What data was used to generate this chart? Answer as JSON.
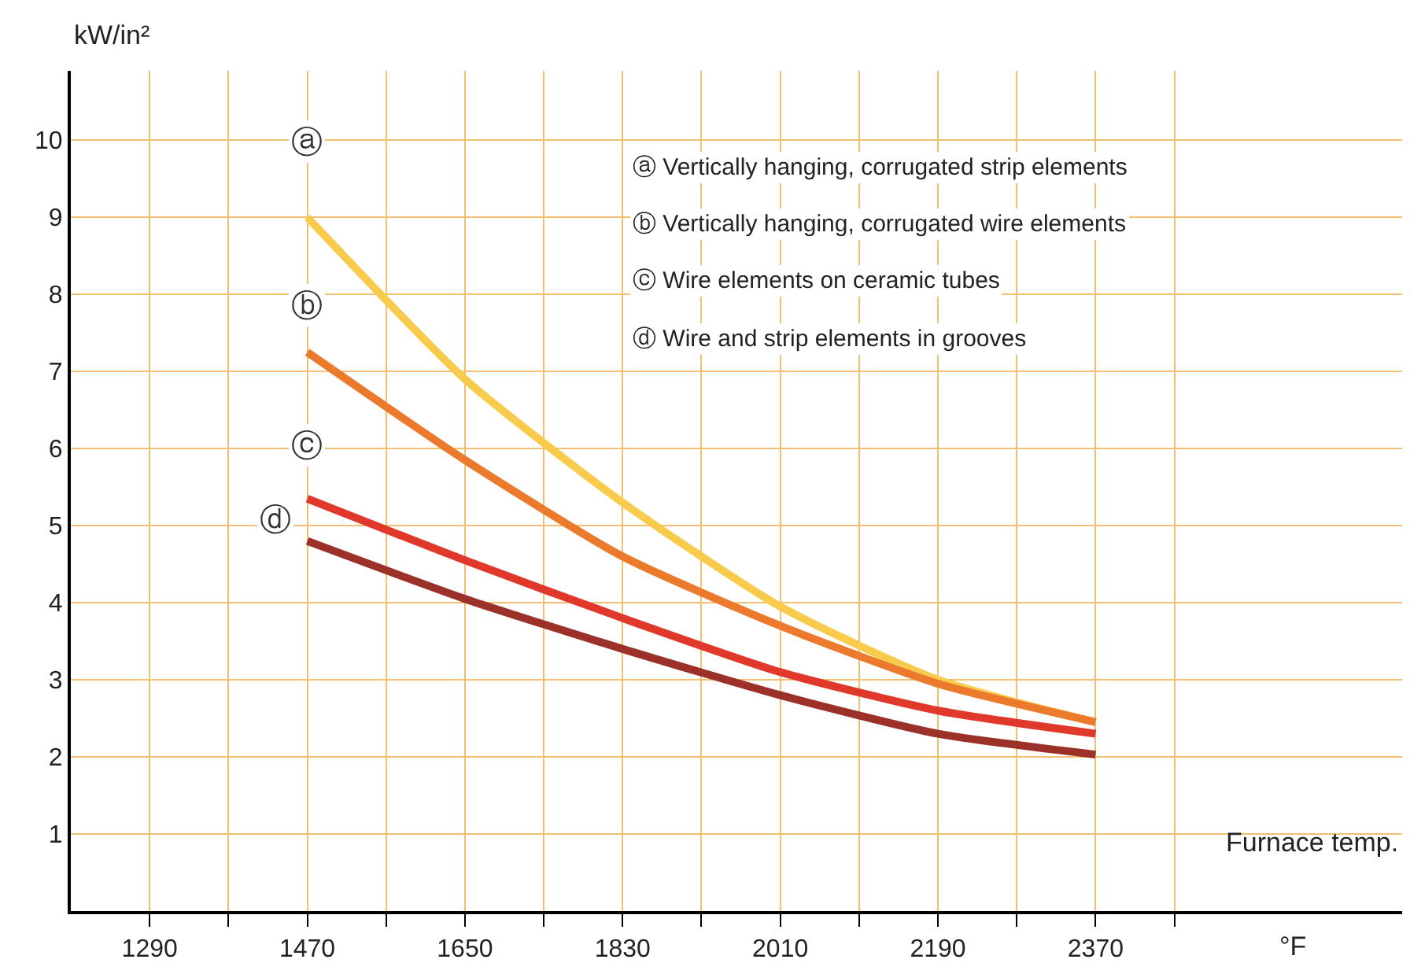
{
  "chart_data": {
    "type": "line",
    "ylabel": "kW/in²",
    "xlabel": "Furnace temp.",
    "x": [
      1470,
      1650,
      1830,
      2010,
      2190,
      2370
    ],
    "series": [
      {
        "color": "#f9cb4d",
        "values": [
          9.0,
          6.9,
          5.3,
          3.95,
          3.0,
          2.45
        ]
      },
      {
        "color": "#ec7a2c",
        "values": [
          7.25,
          5.85,
          4.6,
          3.7,
          2.95,
          2.45
        ]
      },
      {
        "color": "#e0392b",
        "values": [
          5.35,
          4.55,
          3.8,
          3.1,
          2.6,
          2.3
        ]
      },
      {
        "color": "#9b3129",
        "values": [
          4.8,
          4.05,
          3.4,
          2.8,
          2.3,
          2.03
        ]
      }
    ],
    "xlim": [
      1200,
      2720
    ],
    "ylim": [
      0,
      10.9
    ],
    "xticks": [
      {
        "value": 1290,
        "label": "1290"
      },
      {
        "value": 1380,
        "label": null
      },
      {
        "value": 1470,
        "label": "1470"
      },
      {
        "value": 1560,
        "label": null
      },
      {
        "value": 1650,
        "label": "1650"
      },
      {
        "value": 1740,
        "label": null
      },
      {
        "value": 1830,
        "label": "1830"
      },
      {
        "value": 1920,
        "label": null
      },
      {
        "value": 2010,
        "label": "2010"
      },
      {
        "value": 2100,
        "label": null
      },
      {
        "value": 2190,
        "label": "2190"
      },
      {
        "value": 2280,
        "label": null
      },
      {
        "value": 2370,
        "label": "2370"
      },
      {
        "value": 2460,
        "label": null
      }
    ],
    "yticks": [
      1,
      2,
      3,
      4,
      5,
      6,
      7,
      8,
      9,
      10
    ],
    "grid": true,
    "marker": "none",
    "line_style": "solid",
    "annotations": [
      "ⓐ",
      "ⓑ",
      "ⓒ",
      "ⓓ",
      "ⓐ Vertically hanging, corrugated strip elements",
      "ⓑ Vertically hanging, corrugated wire elements",
      "ⓒ Wire elements on ceramic tubes",
      "ⓓ Wire and strip elements in grooves",
      "°F"
    ]
  }
}
